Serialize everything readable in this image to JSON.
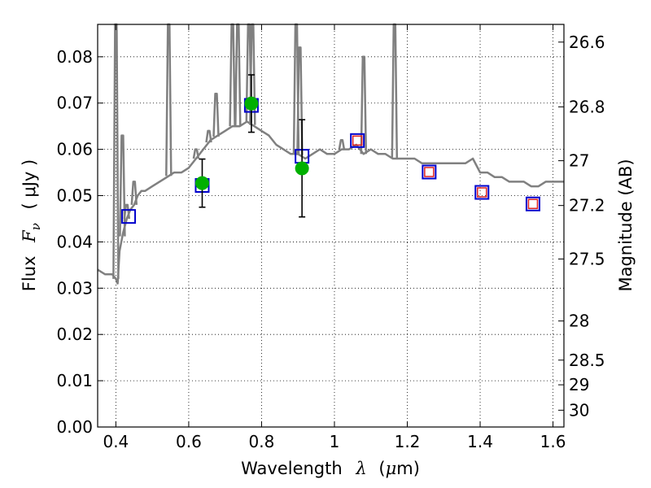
{
  "chart_data": {
    "type": "scatter",
    "title": "",
    "xlabel": {
      "prefix": "Wavelength",
      "symbol": "λ",
      "unit_open": "(",
      "unit_mu": "μ",
      "unit_rest": "m)"
    },
    "ylabel": {
      "prefix": "Flux",
      "symbol": "F",
      "subscript": "ν",
      "unit": "( μJy )"
    },
    "y2label": "Magnitude (AB)",
    "xlim": [
      0.35,
      1.63
    ],
    "ylim": [
      0.0,
      0.087
    ],
    "x_ticks": [
      "0.4",
      "0.6",
      "0.8",
      "1",
      "1.2",
      "1.4",
      "1.6"
    ],
    "y_ticks": [
      "0.00",
      "0.01",
      "0.02",
      "0.03",
      "0.04",
      "0.05",
      "0.06",
      "0.07",
      "0.08"
    ],
    "y2_ticks": [
      "26.6",
      "26.8",
      "27",
      "27.2",
      "27.5",
      "28",
      "28.5",
      "29",
      "30"
    ],
    "grid": true,
    "colors": {
      "model": "#808080",
      "observed": "#00b000",
      "model_box": "#0000cc",
      "predicted": "#dd2222",
      "errorbar": "#000000"
    },
    "series": [
      {
        "role": "model-spectrum",
        "style": "line",
        "x": [
          0.35,
          0.37,
          0.39,
          0.4,
          0.405,
          0.41,
          0.42,
          0.43,
          0.44,
          0.45,
          0.46,
          0.47,
          0.48,
          0.5,
          0.52,
          0.54,
          0.56,
          0.58,
          0.6,
          0.62,
          0.64,
          0.66,
          0.68,
          0.7,
          0.72,
          0.74,
          0.76,
          0.78,
          0.8,
          0.82,
          0.84,
          0.86,
          0.88,
          0.9,
          0.92,
          0.94,
          0.96,
          0.98,
          1.0,
          1.02,
          1.04,
          1.06,
          1.08,
          1.1,
          1.12,
          1.14,
          1.16,
          1.18,
          1.2,
          1.22,
          1.24,
          1.26,
          1.28,
          1.3,
          1.32,
          1.34,
          1.36,
          1.38,
          1.4,
          1.42,
          1.44,
          1.46,
          1.48,
          1.5,
          1.52,
          1.54,
          1.56,
          1.58,
          1.6,
          1.63
        ],
        "y": [
          0.034,
          0.033,
          0.033,
          0.032,
          0.031,
          0.038,
          0.042,
          0.045,
          0.047,
          0.048,
          0.05,
          0.051,
          0.051,
          0.052,
          0.053,
          0.054,
          0.055,
          0.055,
          0.056,
          0.058,
          0.06,
          0.062,
          0.063,
          0.064,
          0.065,
          0.065,
          0.066,
          0.065,
          0.064,
          0.063,
          0.061,
          0.06,
          0.059,
          0.059,
          0.058,
          0.059,
          0.06,
          0.059,
          0.059,
          0.06,
          0.06,
          0.061,
          0.059,
          0.06,
          0.059,
          0.059,
          0.058,
          0.058,
          0.058,
          0.058,
          0.057,
          0.057,
          0.057,
          0.057,
          0.057,
          0.057,
          0.057,
          0.058,
          0.055,
          0.055,
          0.054,
          0.054,
          0.053,
          0.053,
          0.053,
          0.052,
          0.052,
          0.053,
          0.053,
          0.053
        ]
      },
      {
        "role": "emission-lines",
        "style": "spikes",
        "x": [
          0.4,
          0.418,
          0.43,
          0.45,
          0.545,
          0.62,
          0.655,
          0.675,
          0.72,
          0.735,
          0.765,
          0.775,
          0.895,
          0.905,
          1.165,
          1.08,
          1.02
        ],
        "y": [
          0.087,
          0.063,
          0.048,
          0.053,
          0.087,
          0.06,
          0.064,
          0.072,
          0.087,
          0.087,
          0.087,
          0.087,
          0.087,
          0.082,
          0.087,
          0.08,
          0.062
        ]
      },
      {
        "role": "observed-flux",
        "style": "point-with-error",
        "x": [
          0.637,
          0.772,
          0.911
        ],
        "y": [
          0.0527,
          0.0699,
          0.0559
        ],
        "yerr": [
          0.0052,
          0.0062,
          0.0105
        ]
      },
      {
        "role": "model-broadband",
        "style": "square",
        "x": [
          0.435,
          0.637,
          0.772,
          0.911,
          1.063,
          1.26,
          1.405,
          1.545
        ],
        "y": [
          0.0455,
          0.0522,
          0.0695,
          0.0585,
          0.0619,
          0.0551,
          0.0507,
          0.0482
        ]
      },
      {
        "role": "predicted-flux",
        "style": "square",
        "x": [
          1.063,
          1.26,
          1.405,
          1.545
        ],
        "y": [
          0.0619,
          0.0551,
          0.0507,
          0.0482
        ]
      }
    ]
  }
}
